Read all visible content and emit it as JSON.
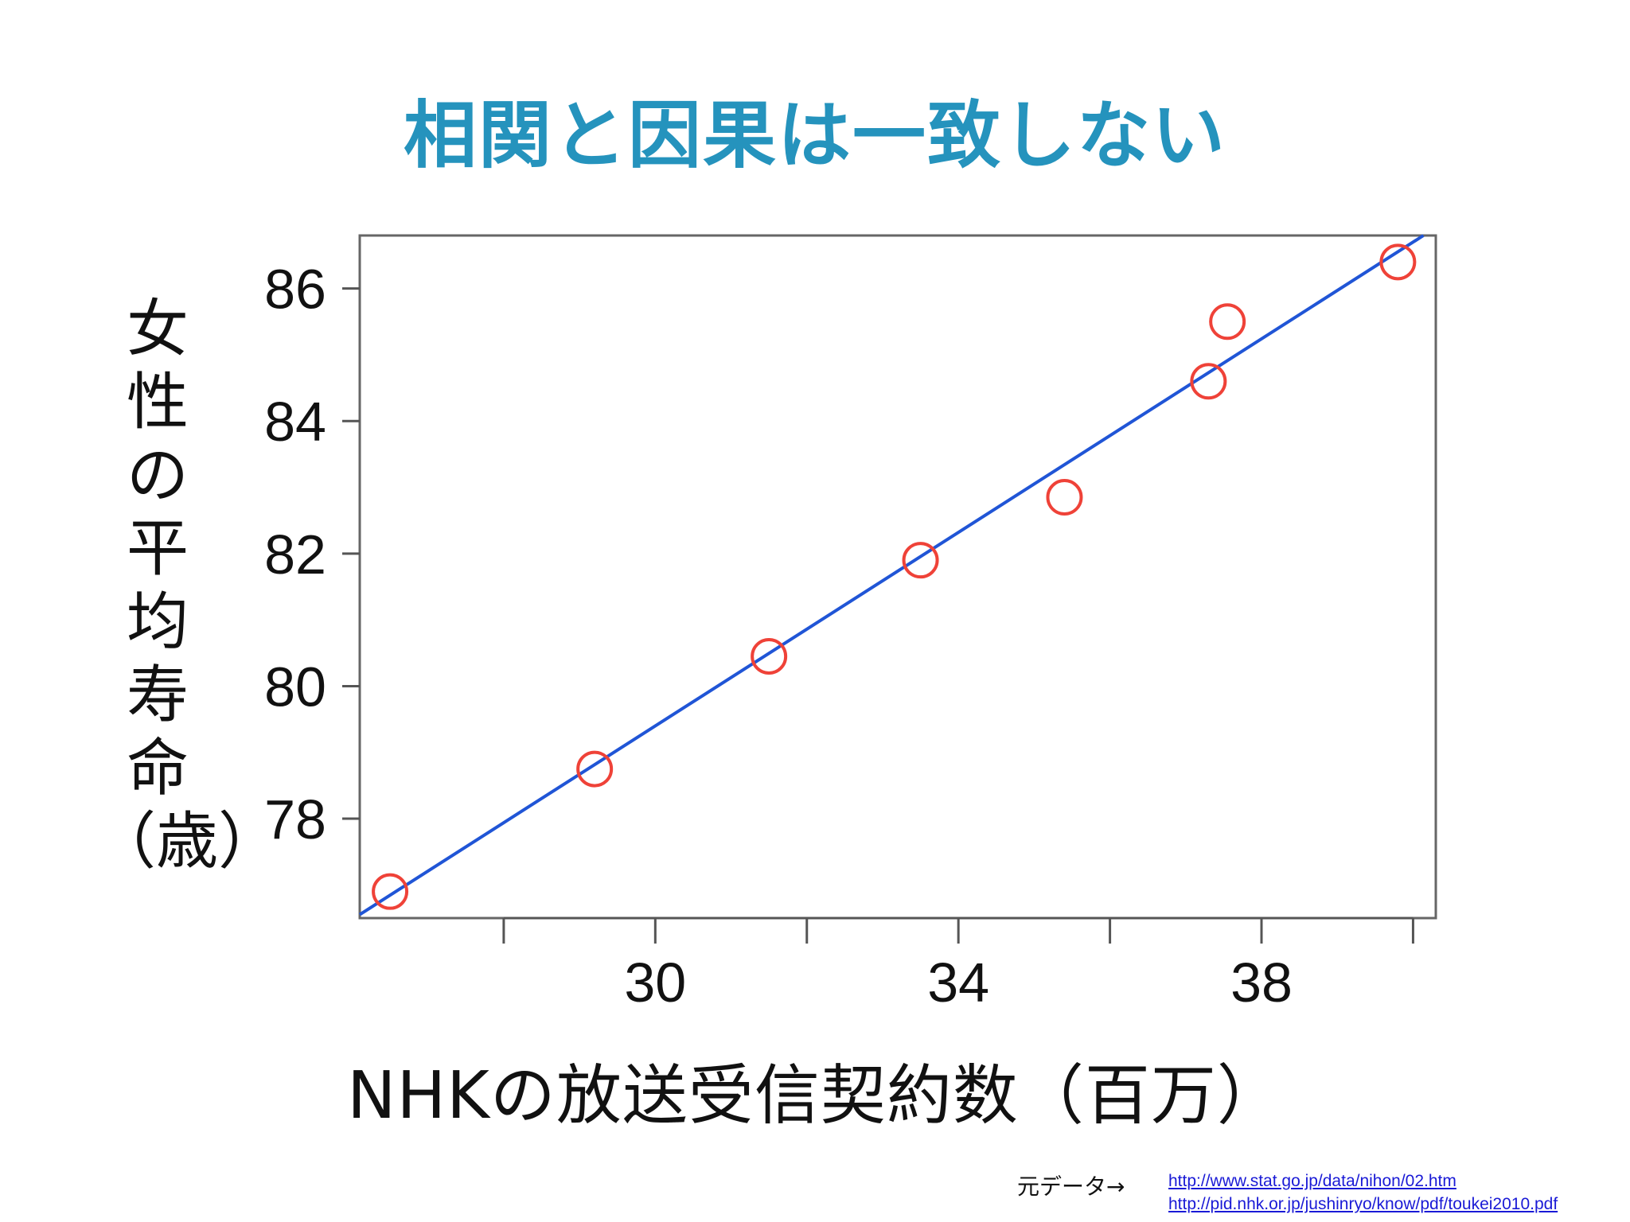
{
  "slide": {
    "title": "相関と因果は一致しない"
  },
  "source": {
    "label": "元データ→",
    "links": [
      "http://www.stat.go.jp/data/nihon/02.htm",
      "http://pid.nhk.or.jp/jushinryo/know/pdf/toukei2010.pdf"
    ]
  },
  "chart_data": {
    "type": "scatter",
    "title": "",
    "xlabel": "NHKの放送受信契約数（百万）",
    "ylabel_chars": [
      "女",
      "性",
      "の",
      "平",
      "均",
      "寿",
      "命",
      "（歳）"
    ],
    "xlim": [
      26.1,
      40.3
    ],
    "ylim": [
      76.5,
      86.8
    ],
    "x_ticks": [
      28,
      30,
      32,
      34,
      36,
      38,
      40
    ],
    "x_tick_labels": [
      "30",
      "34",
      "38"
    ],
    "x_labeled_ticks": [
      30,
      34,
      38
    ],
    "y_ticks": [
      78,
      80,
      82,
      84,
      86
    ],
    "y_tick_labels": [
      "78",
      "80",
      "82",
      "84",
      "86"
    ],
    "grid": false,
    "points": [
      {
        "x": 26.5,
        "y": 76.9
      },
      {
        "x": 29.2,
        "y": 78.75
      },
      {
        "x": 31.5,
        "y": 80.45
      },
      {
        "x": 33.5,
        "y": 81.9
      },
      {
        "x": 35.4,
        "y": 82.85
      },
      {
        "x": 37.3,
        "y": 84.6
      },
      {
        "x": 37.55,
        "y": 85.5
      },
      {
        "x": 39.8,
        "y": 86.4
      }
    ],
    "fit_line": {
      "intercept": 57.5,
      "slope": 0.73
    },
    "colors": {
      "points": "#ef4238",
      "fit_line": "#2055d6",
      "axis": "#555555",
      "title": "#2593bd"
    }
  }
}
